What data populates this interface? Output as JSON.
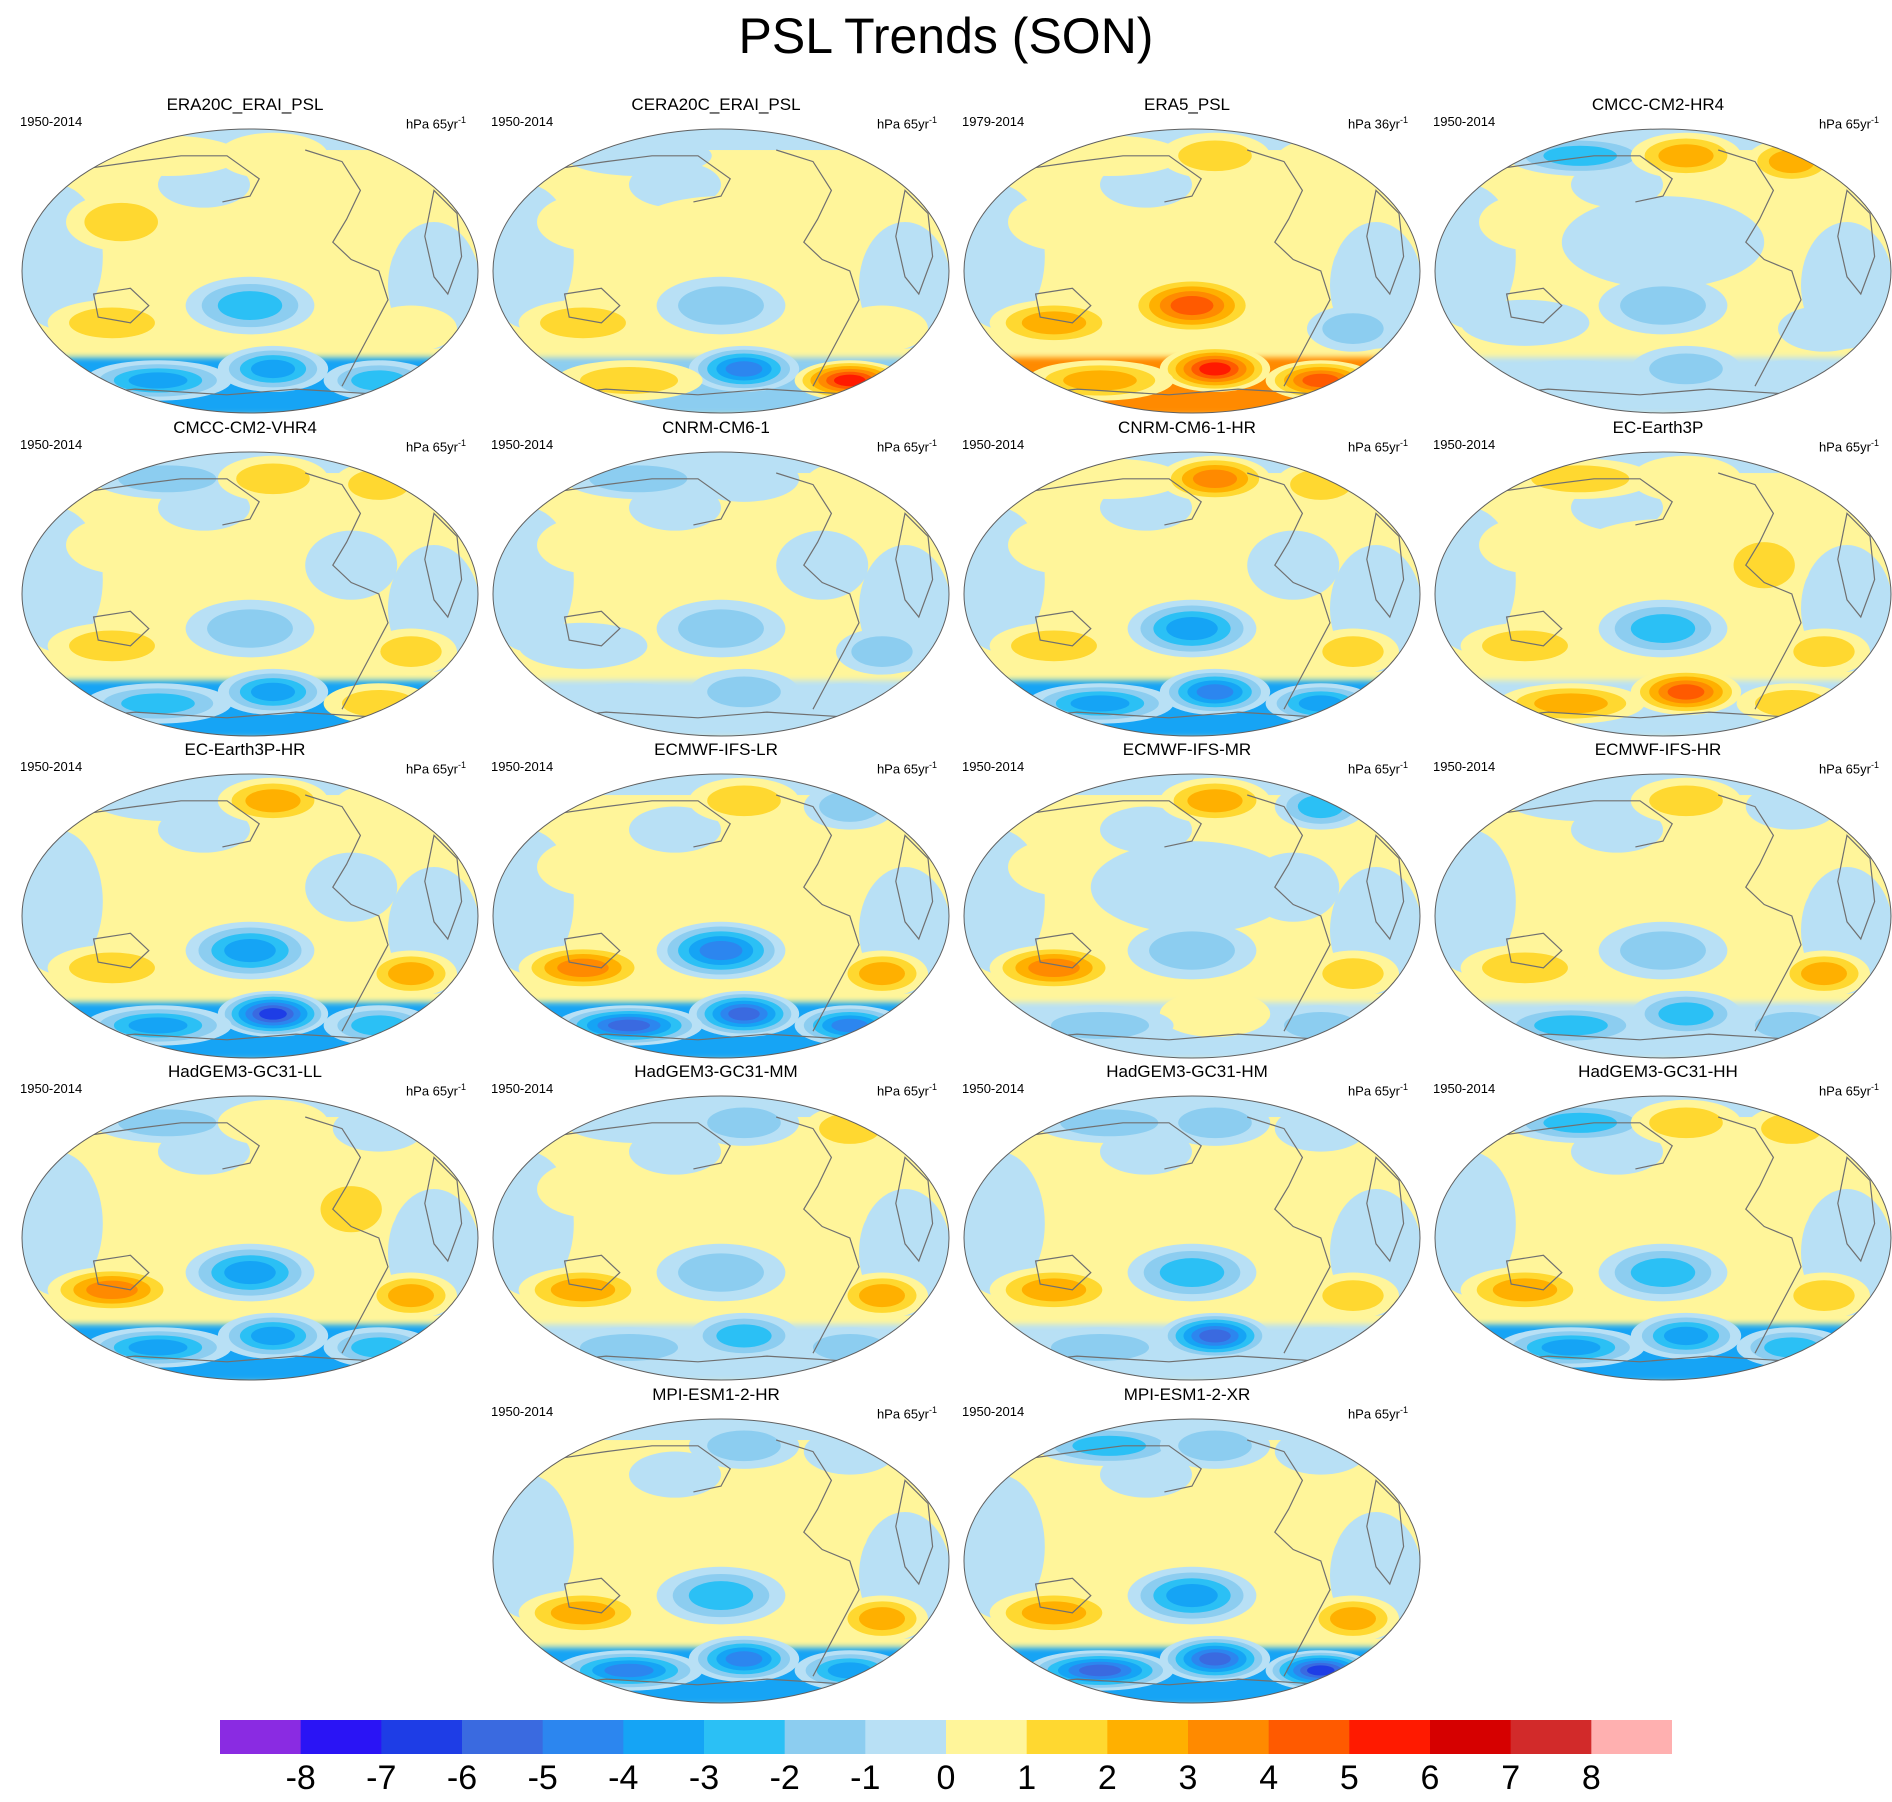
{
  "figure": {
    "title": "PSL Trends (SON)"
  },
  "colors": {
    "land_outline": "#707070",
    "map_border": "#606060"
  },
  "panels": [
    {
      "name": "ERA20C_ERAI_PSL",
      "period": "1950-2014",
      "units": "hPa 65yr",
      "units_exp": "-1",
      "south_band": "blue",
      "pattern": [
        1,
        1,
        0,
        2,
        0,
        1,
        2,
        1,
        -3,
        -4,
        -4,
        -3
      ]
    },
    {
      "name": "CERA20C_ERAI_PSL",
      "period": "1950-2014",
      "units": "hPa 65yr",
      "units_exp": "-1",
      "south_band": "mixed",
      "pattern": [
        -1,
        0,
        0,
        1,
        1,
        0,
        2,
        1,
        -2,
        -5,
        2,
        6
      ]
    },
    {
      "name": "ERA5_PSL",
      "period": "1979-2014",
      "units": "hPa 36yr",
      "units_exp": "-1",
      "south_band": "red",
      "pattern": [
        1,
        2,
        1,
        1,
        0,
        1,
        3,
        -2,
        5,
        6,
        3,
        5
      ]
    },
    {
      "name": "CMCC-CM2-HR4",
      "period": "1950-2014",
      "units": "hPa 65yr",
      "units_exp": "-1",
      "south_band": "light",
      "pattern": [
        -3,
        3,
        3,
        1,
        -1,
        0,
        -1,
        -1,
        -2,
        -2,
        -1,
        -1
      ]
    },
    {
      "name": "CMCC-CM2-VHR4",
      "period": "1950-2014",
      "units": "hPa 65yr",
      "units_exp": "-1",
      "south_band": "blue",
      "pattern": [
        -2,
        2,
        2,
        1,
        0,
        -1,
        2,
        2,
        -2,
        -4,
        -3,
        2
      ]
    },
    {
      "name": "CNRM-CM6-1",
      "period": "1950-2014",
      "units": "hPa 65yr",
      "units_exp": "-1",
      "south_band": "light",
      "pattern": [
        -2,
        -1,
        1,
        1,
        0,
        -1,
        -1,
        -2,
        -2,
        -2,
        -1,
        -1
      ]
    },
    {
      "name": "CNRM-CM6-1-HR",
      "period": "1950-2014",
      "units": "hPa 65yr",
      "units_exp": "-1",
      "south_band": "blue",
      "pattern": [
        1,
        4,
        2,
        1,
        0,
        -1,
        2,
        2,
        -4,
        -5,
        -4,
        -4
      ]
    },
    {
      "name": "EC-Earth3P",
      "period": "1950-2014",
      "units": "hPa 65yr",
      "units_exp": "-1",
      "south_band": "light",
      "pattern": [
        2,
        1,
        0,
        1,
        1,
        2,
        2,
        2,
        -3,
        5,
        3,
        2
      ]
    },
    {
      "name": "EC-Earth3P-HR",
      "period": "1950-2014",
      "units": "hPa 65yr",
      "units_exp": "-1",
      "south_band": "blue",
      "pattern": [
        -1,
        3,
        1,
        0,
        0,
        -1,
        2,
        3,
        -4,
        -7,
        -4,
        -3
      ]
    },
    {
      "name": "ECMWF-IFS-LR",
      "period": "1950-2014",
      "units": "hPa 65yr",
      "units_exp": "-1",
      "south_band": "blue",
      "pattern": [
        0,
        2,
        -2,
        1,
        0,
        0,
        4,
        3,
        -5,
        -6,
        -6,
        -5
      ]
    },
    {
      "name": "ECMWF-IFS-MR",
      "period": "1950-2014",
      "units": "hPa 65yr",
      "units_exp": "-1",
      "south_band": "light",
      "pattern": [
        0,
        3,
        -3,
        1,
        -1,
        -1,
        4,
        2,
        -2,
        1,
        -2,
        -2
      ]
    },
    {
      "name": "ECMWF-IFS-HR",
      "period": "1950-2014",
      "units": "hPa 65yr",
      "units_exp": "-1",
      "south_band": "light",
      "pattern": [
        -1,
        2,
        -1,
        0,
        0,
        1,
        2,
        3,
        -2,
        -3,
        -3,
        -2
      ]
    },
    {
      "name": "HadGEM3-GC31-LL",
      "period": "1950-2014",
      "units": "hPa 65yr",
      "units_exp": "-1",
      "south_band": "blue",
      "pattern": [
        -2,
        1,
        -1,
        0,
        0,
        2,
        4,
        3,
        -4,
        -4,
        -4,
        -3
      ]
    },
    {
      "name": "HadGEM3-GC31-MM",
      "period": "1950-2014",
      "units": "hPa 65yr",
      "units_exp": "-1",
      "south_band": "light",
      "pattern": [
        -1,
        -2,
        2,
        1,
        0,
        1,
        3,
        3,
        -2,
        -3,
        -2,
        -2
      ]
    },
    {
      "name": "HadGEM3-GC31-HM",
      "period": "1950-2014",
      "units": "hPa 65yr",
      "units_exp": "-1",
      "south_band": "light",
      "pattern": [
        -2,
        -2,
        -1,
        0,
        0,
        1,
        3,
        2,
        -3,
        -6,
        -2,
        -1
      ]
    },
    {
      "name": "HadGEM3-GC31-HH",
      "period": "1950-2014",
      "units": "hPa 65yr",
      "units_exp": "-1",
      "south_band": "blue",
      "pattern": [
        -3,
        2,
        2,
        0,
        0,
        1,
        3,
        2,
        -3,
        -4,
        -4,
        -3
      ]
    },
    {
      "name": "MPI-ESM1-2-HR",
      "period": "1950-2014",
      "units": "hPa 65yr",
      "units_exp": "-1",
      "south_band": "blue",
      "pattern": [
        0,
        -2,
        -1,
        0,
        0,
        1,
        3,
        3,
        -3,
        -5,
        -5,
        -4
      ]
    },
    {
      "name": "MPI-ESM1-2-XR",
      "period": "1950-2014",
      "units": "hPa 65yr",
      "units_exp": "-1",
      "south_band": "blue",
      "pattern": [
        -3,
        -2,
        -1,
        0,
        0,
        1,
        3,
        3,
        -4,
        -6,
        -6,
        -7
      ]
    }
  ],
  "colorbar": {
    "labels": [
      "-8",
      "-7",
      "-6",
      "-5",
      "-4",
      "-3",
      "-2",
      "-1",
      "0",
      "1",
      "2",
      "3",
      "4",
      "5",
      "6",
      "7",
      "8"
    ],
    "colors": [
      "#8a2be2",
      "#2a14f5",
      "#1e3de6",
      "#3a6ae0",
      "#2c86ef",
      "#15a4f5",
      "#2bc0f5",
      "#8ccdf0",
      "#b8e0f5",
      "#fff59a",
      "#ffd830",
      "#ffb000",
      "#ff8a00",
      "#ff5a00",
      "#ff1a00",
      "#d60000",
      "#d22a2a",
      "#ffb0b0"
    ]
  }
}
